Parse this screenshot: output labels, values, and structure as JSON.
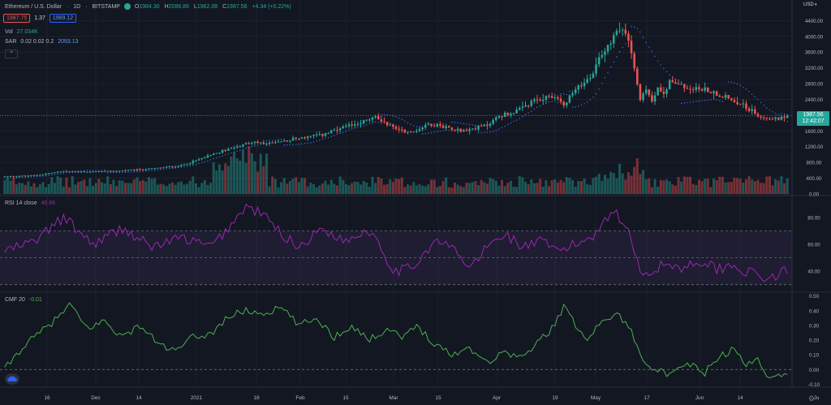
{
  "header": {
    "symbol": "Ethereum / U.S. Dollar",
    "interval": "1D",
    "exchange": "BITSTAMP",
    "open_label": "O",
    "open": "1984.30",
    "high_label": "H",
    "high": "2086.86",
    "low_label": "L",
    "low": "1962.08",
    "close_label": "C",
    "close": "1987.56",
    "change": "+4.34 (+0.22%)",
    "sell_price": "1987.75",
    "spread": "1.37",
    "buy_price": "1989.12"
  },
  "indicators": {
    "vol_label": "Vol",
    "vol_value": "27.034K",
    "sar_label": "SAR",
    "sar_params": "0.02 0.02 0.2",
    "sar_value": "2093.13",
    "collapse_icon": "chevron-up-icon",
    "rsi_label": "RSI 14 close",
    "rsi_value": "40.66",
    "cmf_label": "CMF 20",
    "cmf_value": "-0.01"
  },
  "price_axis": {
    "currency": "USD",
    "current_price": "1987.56",
    "countdown": "12:42:07",
    "ticks": [
      "4400.00",
      "4000.00",
      "3600.00",
      "3200.00",
      "2800.00",
      "2400.00",
      "2000.00",
      "1600.00",
      "1200.00",
      "800.00",
      "400.00",
      "0.00"
    ]
  },
  "rsi_axis": {
    "ticks": [
      "80.00",
      "60.00",
      "40.00"
    ]
  },
  "cmf_axis": {
    "ticks": [
      "0.50",
      "0.40",
      "0.30",
      "0.20",
      "0.10",
      "0.00",
      "-0.10"
    ]
  },
  "time_axis": {
    "labels": [
      "16",
      "Dec",
      "14",
      "2021",
      "18",
      "Feb",
      "15",
      "Mar",
      "15",
      "Apr",
      "19",
      "May",
      "17",
      "Jun",
      "14",
      "Ju"
    ]
  },
  "colors": {
    "up": "#26a69a",
    "down": "#ef5350",
    "rsi": "#9c27b0",
    "cmf": "#4caf50",
    "sar": "#3179f5",
    "bg": "#131722"
  },
  "chart_data": {
    "type": "candlestick",
    "instrument": "Ethereum / U.S. Dollar",
    "interval": "1D",
    "price_range_usd": [
      0,
      4600
    ],
    "price_anchors": [
      {
        "date": "mid-Nov 2020",
        "close": 450
      },
      {
        "date": "early Jan 2021",
        "close": 1100
      },
      {
        "date": "Feb 2021",
        "close": 1800
      },
      {
        "date": "Apr 2021",
        "close": 2500
      },
      {
        "date": "May 12 2021",
        "high": 4360
      },
      {
        "date": "May 19 2021",
        "low": 1900
      },
      {
        "date": "late Jun 2021",
        "close": 1987.56
      }
    ],
    "rsi": {
      "length": 14,
      "source": "close",
      "last": 40.66,
      "bands": [
        30,
        50,
        70
      ],
      "range": [
        25,
        95
      ]
    },
    "cmf": {
      "length": 20,
      "last": -0.01,
      "range": [
        -0.12,
        0.52
      ]
    },
    "volume_last": "27.034K",
    "sar_last": 2093.13
  }
}
